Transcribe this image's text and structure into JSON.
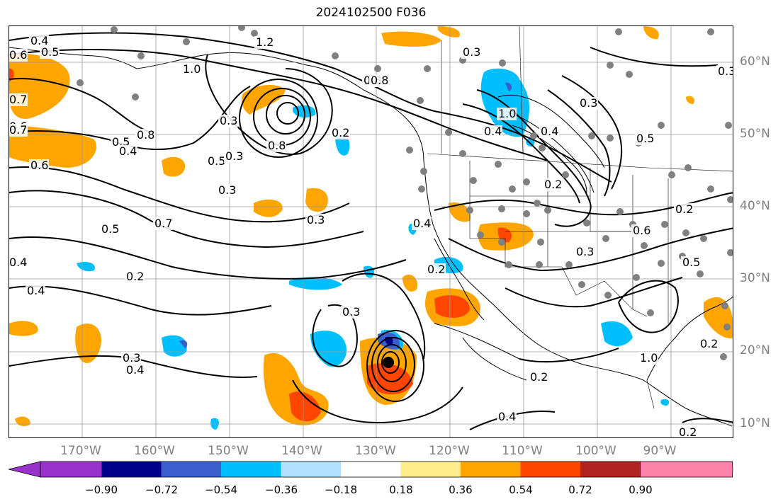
{
  "title": "2024102500 F036",
  "lon_labels": [
    "170°W",
    "160°W",
    "150°W",
    "140°W",
    "130°W",
    "120°W",
    "110°W",
    "100°W",
    "90°W"
  ],
  "lat_labels": [
    "60°N",
    "50°N",
    "40°N",
    "30°N",
    "20°N",
    "10°N"
  ],
  "colorbar": {
    "colors": [
      "#9932cc",
      "#00008b",
      "#3a5fcd",
      "#00bfff",
      "#b0e2ff",
      "#ffffff",
      "#ffec8b",
      "#ffa500",
      "#ff4500",
      "#b22222",
      "#ff82ab"
    ],
    "ticks": [
      "−0.90",
      "−0.72",
      "−0.54",
      "−0.36",
      "−0.18",
      "0.18",
      "0.36",
      "0.54",
      "0.72",
      "0.90"
    ]
  },
  "contour_labels": [
    "0.4",
    "0.5",
    "0.6",
    "1.2",
    "1.0",
    "0.3",
    "0.8",
    "0.7",
    "0.6",
    "0.7",
    "0.5",
    "0.4",
    "0.6",
    "0.5",
    "0.8",
    "0.3",
    "0.2",
    "0.8",
    "0.3",
    "0.5",
    "0.7",
    "0.4",
    "0.4",
    "0.2",
    "0.4",
    "0.8",
    "1.0",
    "0.2",
    "0.4",
    "0.3",
    "0.3",
    "0.4",
    "0.6",
    "0.2",
    "0.5",
    "0.5",
    "0.3",
    "0.3",
    "0.3",
    "0.2",
    "0.2",
    "0.4",
    "0.4",
    "0.3",
    "0.3",
    "0.2",
    "1.0",
    "0.2"
  ],
  "marker_color": "#808080"
}
